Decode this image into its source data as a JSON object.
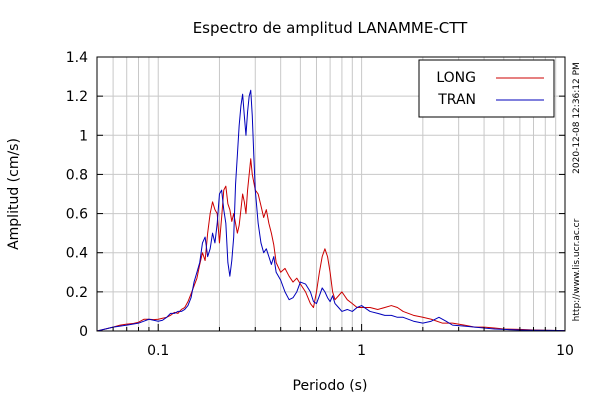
{
  "chart_data": {
    "type": "line",
    "title": "Espectro de amplitud LANAMME-CTT",
    "xlabel": "Periodo (s)",
    "ylabel": "Amplitud (cm/s)",
    "x_scale": "log",
    "xlim": [
      0.05,
      10
    ],
    "ylim": [
      0,
      1.4
    ],
    "x_ticks": [
      0.1,
      1,
      10
    ],
    "x_tick_labels": [
      "0.1",
      "1",
      "10"
    ],
    "y_ticks": [
      0,
      0.2,
      0.4,
      0.6,
      0.8,
      1,
      1.2,
      1.4
    ],
    "y_tick_labels": [
      "0",
      "0.2",
      "0.4",
      "0.6",
      "0.8",
      "1",
      "1.2",
      "1.4"
    ],
    "grid": true,
    "legend_position": "top-right",
    "side_labels": {
      "timestamp": "2020-12-08 12:36:12 PM",
      "url": "http://www.lis.ucr.ac.cr"
    },
    "series": [
      {
        "name": "LONG",
        "color": "#cc0000",
        "points": [
          [
            0.05,
            0.0
          ],
          [
            0.055,
            0.01
          ],
          [
            0.06,
            0.02
          ],
          [
            0.065,
            0.03
          ],
          [
            0.07,
            0.035
          ],
          [
            0.075,
            0.038
          ],
          [
            0.08,
            0.045
          ],
          [
            0.085,
            0.06
          ],
          [
            0.09,
            0.06
          ],
          [
            0.095,
            0.058
          ],
          [
            0.1,
            0.06
          ],
          [
            0.105,
            0.065
          ],
          [
            0.11,
            0.07
          ],
          [
            0.115,
            0.08
          ],
          [
            0.12,
            0.095
          ],
          [
            0.125,
            0.09
          ],
          [
            0.13,
            0.11
          ],
          [
            0.135,
            0.12
          ],
          [
            0.14,
            0.15
          ],
          [
            0.145,
            0.19
          ],
          [
            0.15,
            0.23
          ],
          [
            0.155,
            0.27
          ],
          [
            0.16,
            0.34
          ],
          [
            0.165,
            0.4
          ],
          [
            0.17,
            0.36
          ],
          [
            0.175,
            0.5
          ],
          [
            0.18,
            0.6
          ],
          [
            0.185,
            0.66
          ],
          [
            0.19,
            0.62
          ],
          [
            0.195,
            0.6
          ],
          [
            0.2,
            0.45
          ],
          [
            0.205,
            0.58
          ],
          [
            0.21,
            0.72
          ],
          [
            0.215,
            0.74
          ],
          [
            0.22,
            0.65
          ],
          [
            0.225,
            0.62
          ],
          [
            0.23,
            0.56
          ],
          [
            0.235,
            0.6
          ],
          [
            0.24,
            0.55
          ],
          [
            0.245,
            0.5
          ],
          [
            0.25,
            0.54
          ],
          [
            0.255,
            0.62
          ],
          [
            0.26,
            0.7
          ],
          [
            0.265,
            0.66
          ],
          [
            0.27,
            0.6
          ],
          [
            0.275,
            0.72
          ],
          [
            0.28,
            0.8
          ],
          [
            0.285,
            0.88
          ],
          [
            0.29,
            0.8
          ],
          [
            0.3,
            0.72
          ],
          [
            0.31,
            0.7
          ],
          [
            0.32,
            0.64
          ],
          [
            0.33,
            0.58
          ],
          [
            0.34,
            0.62
          ],
          [
            0.35,
            0.55
          ],
          [
            0.36,
            0.5
          ],
          [
            0.37,
            0.44
          ],
          [
            0.38,
            0.35
          ],
          [
            0.4,
            0.3
          ],
          [
            0.42,
            0.32
          ],
          [
            0.44,
            0.28
          ],
          [
            0.46,
            0.25
          ],
          [
            0.48,
            0.27
          ],
          [
            0.5,
            0.24
          ],
          [
            0.53,
            0.2
          ],
          [
            0.56,
            0.14
          ],
          [
            0.58,
            0.12
          ],
          [
            0.6,
            0.2
          ],
          [
            0.62,
            0.3
          ],
          [
            0.64,
            0.38
          ],
          [
            0.66,
            0.42
          ],
          [
            0.68,
            0.38
          ],
          [
            0.7,
            0.3
          ],
          [
            0.72,
            0.2
          ],
          [
            0.74,
            0.16
          ],
          [
            0.77,
            0.18
          ],
          [
            0.8,
            0.2
          ],
          [
            0.85,
            0.16
          ],
          [
            0.9,
            0.14
          ],
          [
            0.95,
            0.12
          ],
          [
            1.0,
            0.12
          ],
          [
            1.1,
            0.12
          ],
          [
            1.2,
            0.11
          ],
          [
            1.3,
            0.12
          ],
          [
            1.4,
            0.13
          ],
          [
            1.5,
            0.12
          ],
          [
            1.6,
            0.1
          ],
          [
            1.8,
            0.08
          ],
          [
            2.0,
            0.07
          ],
          [
            2.2,
            0.06
          ],
          [
            2.5,
            0.04
          ],
          [
            2.8,
            0.04
          ],
          [
            3.2,
            0.03
          ],
          [
            3.6,
            0.02
          ],
          [
            4.0,
            0.02
          ],
          [
            4.5,
            0.015
          ],
          [
            5.0,
            0.01
          ],
          [
            6.0,
            0.008
          ],
          [
            7.0,
            0.005
          ],
          [
            8.5,
            0.003
          ],
          [
            10.0,
            0.002
          ]
        ]
      },
      {
        "name": "TRAN",
        "color": "#0000bb",
        "points": [
          [
            0.05,
            0.0
          ],
          [
            0.055,
            0.01
          ],
          [
            0.06,
            0.02
          ],
          [
            0.065,
            0.025
          ],
          [
            0.07,
            0.03
          ],
          [
            0.075,
            0.035
          ],
          [
            0.08,
            0.04
          ],
          [
            0.085,
            0.05
          ],
          [
            0.09,
            0.06
          ],
          [
            0.095,
            0.055
          ],
          [
            0.1,
            0.05
          ],
          [
            0.105,
            0.055
          ],
          [
            0.11,
            0.07
          ],
          [
            0.115,
            0.09
          ],
          [
            0.12,
            0.09
          ],
          [
            0.125,
            0.1
          ],
          [
            0.13,
            0.1
          ],
          [
            0.135,
            0.11
          ],
          [
            0.14,
            0.13
          ],
          [
            0.145,
            0.17
          ],
          [
            0.15,
            0.25
          ],
          [
            0.155,
            0.3
          ],
          [
            0.16,
            0.35
          ],
          [
            0.165,
            0.45
          ],
          [
            0.17,
            0.48
          ],
          [
            0.175,
            0.38
          ],
          [
            0.18,
            0.42
          ],
          [
            0.185,
            0.5
          ],
          [
            0.19,
            0.45
          ],
          [
            0.195,
            0.55
          ],
          [
            0.2,
            0.7
          ],
          [
            0.205,
            0.72
          ],
          [
            0.21,
            0.62
          ],
          [
            0.215,
            0.55
          ],
          [
            0.22,
            0.35
          ],
          [
            0.225,
            0.28
          ],
          [
            0.23,
            0.36
          ],
          [
            0.235,
            0.48
          ],
          [
            0.24,
            0.75
          ],
          [
            0.245,
            0.9
          ],
          [
            0.25,
            1.05
          ],
          [
            0.255,
            1.15
          ],
          [
            0.26,
            1.21
          ],
          [
            0.265,
            1.1
          ],
          [
            0.27,
            1.0
          ],
          [
            0.275,
            1.12
          ],
          [
            0.28,
            1.2
          ],
          [
            0.285,
            1.23
          ],
          [
            0.29,
            1.1
          ],
          [
            0.295,
            0.9
          ],
          [
            0.3,
            0.72
          ],
          [
            0.31,
            0.55
          ],
          [
            0.32,
            0.45
          ],
          [
            0.33,
            0.4
          ],
          [
            0.34,
            0.42
          ],
          [
            0.35,
            0.38
          ],
          [
            0.36,
            0.34
          ],
          [
            0.37,
            0.38
          ],
          [
            0.38,
            0.3
          ],
          [
            0.4,
            0.26
          ],
          [
            0.42,
            0.2
          ],
          [
            0.44,
            0.16
          ],
          [
            0.46,
            0.17
          ],
          [
            0.48,
            0.2
          ],
          [
            0.5,
            0.25
          ],
          [
            0.53,
            0.24
          ],
          [
            0.56,
            0.2
          ],
          [
            0.58,
            0.15
          ],
          [
            0.6,
            0.14
          ],
          [
            0.62,
            0.18
          ],
          [
            0.64,
            0.22
          ],
          [
            0.66,
            0.2
          ],
          [
            0.68,
            0.17
          ],
          [
            0.7,
            0.15
          ],
          [
            0.72,
            0.18
          ],
          [
            0.74,
            0.14
          ],
          [
            0.77,
            0.12
          ],
          [
            0.8,
            0.1
          ],
          [
            0.85,
            0.11
          ],
          [
            0.9,
            0.1
          ],
          [
            0.95,
            0.12
          ],
          [
            1.0,
            0.13
          ],
          [
            1.1,
            0.1
          ],
          [
            1.2,
            0.09
          ],
          [
            1.3,
            0.08
          ],
          [
            1.4,
            0.08
          ],
          [
            1.5,
            0.07
          ],
          [
            1.6,
            0.07
          ],
          [
            1.8,
            0.05
          ],
          [
            2.0,
            0.04
          ],
          [
            2.2,
            0.05
          ],
          [
            2.4,
            0.07
          ],
          [
            2.6,
            0.05
          ],
          [
            2.8,
            0.03
          ],
          [
            3.2,
            0.025
          ],
          [
            3.6,
            0.02
          ],
          [
            4.0,
            0.015
          ],
          [
            4.5,
            0.01
          ],
          [
            5.0,
            0.008
          ],
          [
            6.0,
            0.005
          ],
          [
            7.0,
            0.004
          ],
          [
            8.5,
            0.003
          ],
          [
            10.0,
            0.002
          ]
        ]
      }
    ]
  }
}
